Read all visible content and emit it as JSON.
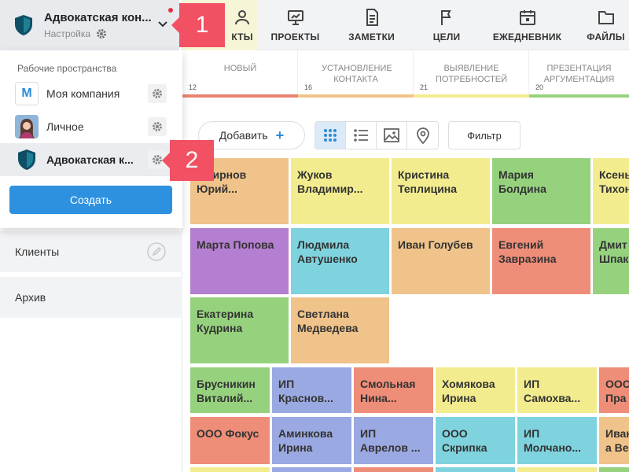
{
  "workspace": {
    "title": "Адвокатская кон...",
    "subtitle": "Настройка"
  },
  "nav": {
    "items": [
      {
        "label": "ПРОЕКТЫ",
        "icon": "presentation-board-icon"
      },
      {
        "label": "ЗАМЕТКИ",
        "icon": "document-icon"
      },
      {
        "label": "ЦЕЛИ",
        "icon": "flag-icon"
      },
      {
        "label": "ЕЖЕДНЕВНИК",
        "icon": "calendar-icon"
      },
      {
        "label": "ФАЙЛЫ",
        "icon": "folder-icon"
      }
    ],
    "active_partial_label": "КТЫ"
  },
  "stages": [
    {
      "name": "НОВЫЙ",
      "count": "12",
      "color": "#e8836f"
    },
    {
      "name": "УСТАНОВЛЕНИЕ КОНТАКТА",
      "count": "16",
      "color": "#f0c38a"
    },
    {
      "name": "ВЫЯВЛЕНИЕ ПОТРЕБНОСТЕЙ",
      "count": "21",
      "color": "#f2ec8e"
    },
    {
      "name": "ПРЕЗЕНТАЦИЯ АРГУМЕНТАЦИЯ",
      "count": "20",
      "color": "#96d27e"
    }
  ],
  "toolbar": {
    "add_label": "Добавить",
    "add_symbol": "+",
    "filter_label": "Фильтр"
  },
  "dropdown": {
    "heading": "Рабочие пространства",
    "items": [
      {
        "label": "Моя компания",
        "icon_letter": "M"
      },
      {
        "label": "Личное"
      },
      {
        "label": "Адвокатская к..."
      }
    ],
    "create_label": "Создать"
  },
  "sections": [
    {
      "label": "Клиенты"
    },
    {
      "label": "Архив"
    }
  ],
  "callouts": [
    "1",
    "2"
  ],
  "cards": [
    {
      "lines": [
        "Смирнов",
        "Юрий..."
      ],
      "color": "#f0c38a"
    },
    {
      "lines": [
        "Жуков",
        "Владимир..."
      ],
      "color": "#f2ec8e"
    },
    {
      "lines": [
        "Кристина",
        "Теплицина"
      ],
      "color": "#f2ec8e"
    },
    {
      "lines": [
        "Мария",
        "Болдина"
      ],
      "color": "#96d27e"
    },
    {
      "lines": [
        "Ксень",
        "Тихон"
      ],
      "color": "#f2ec8e"
    },
    {
      "lines": [
        "Марта Попова"
      ],
      "color": "#b57fd1"
    },
    {
      "lines": [
        "Людмила",
        "Автушенко"
      ],
      "color": "#7fd3de"
    },
    {
      "lines": [
        "Иван Голубев"
      ],
      "color": "#f0c38a"
    },
    {
      "lines": [
        "Евгений",
        "Завразина"
      ],
      "color": "#ee8d78"
    },
    {
      "lines": [
        "Дмит",
        "Шпак"
      ],
      "color": "#96d27e"
    },
    {
      "lines": [
        "Екатерина",
        "Кудрина"
      ],
      "color": "#96d27e"
    },
    {
      "lines": [
        "Светлана",
        "Медведева"
      ],
      "color": "#f0c38a"
    },
    {
      "lines": [
        "Брусникин",
        "Виталий..."
      ],
      "color": "#96d27e"
    },
    {
      "lines": [
        "ИП",
        "Краснов..."
      ],
      "color": "#9aa9e1"
    },
    {
      "lines": [
        "Смольная",
        "Нина..."
      ],
      "color": "#ee8d78"
    },
    {
      "lines": [
        "Хомякова",
        "Ирина"
      ],
      "color": "#f2ec8e"
    },
    {
      "lines": [
        "ИП",
        "Самохва..."
      ],
      "color": "#f2ec8e"
    },
    {
      "lines": [
        "ООО",
        "Пра"
      ],
      "color": "#ee8d78"
    },
    {
      "lines": [
        "ООО Фокус"
      ],
      "color": "#ee8d78"
    },
    {
      "lines": [
        "Аминкова",
        "Ирина"
      ],
      "color": "#9aa9e1"
    },
    {
      "lines": [
        "ИП",
        "Аврелов ..."
      ],
      "color": "#9aa9e1"
    },
    {
      "lines": [
        "ООО",
        "Скрипка"
      ],
      "color": "#7fd3de"
    },
    {
      "lines": [
        "ИП",
        "Молчано..."
      ],
      "color": "#7fd3de"
    },
    {
      "lines": [
        "Иван",
        "а Ве"
      ],
      "color": "#f0c38a"
    },
    {
      "lines": [],
      "color": "#f2ec8e"
    },
    {
      "lines": [],
      "color": "#9aa9e1"
    },
    {
      "lines": [],
      "color": "#ee8d78"
    },
    {
      "lines": [],
      "color": "#7fd3de"
    },
    {
      "lines": [],
      "color": "#f2ec8e"
    },
    {
      "lines": [],
      "color": "#96d27e"
    }
  ]
}
